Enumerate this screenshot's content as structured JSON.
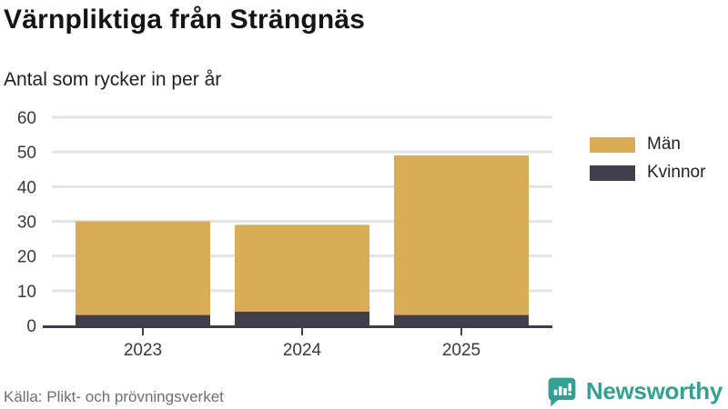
{
  "header": {
    "title": "Värnpliktiga från Strängnäs",
    "subtitle": "Antal som rycker in per år"
  },
  "chart_data": {
    "type": "bar",
    "stacked": true,
    "categories": [
      "2023",
      "2024",
      "2025"
    ],
    "series": [
      {
        "name": "Män",
        "color": "#d9ad58",
        "values": [
          27,
          25,
          46
        ]
      },
      {
        "name": "Kvinnor",
        "color": "#413f4d",
        "values": [
          3,
          4,
          3
        ]
      }
    ],
    "totals": [
      30,
      29,
      49
    ],
    "title": "Värnpliktiga från Strängnäs",
    "subtitle": "Antal som rycker in per år",
    "xlabel": "",
    "ylabel": "",
    "ylim": [
      0,
      60
    ],
    "yticks": [
      0,
      10,
      20,
      30,
      40,
      50,
      60
    ],
    "grid": true,
    "legend_position": "right"
  },
  "footer": {
    "source": "Källa: Plikt- och prövningsverket",
    "brand": "Newsworthy"
  },
  "icons": {
    "brand": "speech-bubble-bar-chart-icon"
  },
  "colors": {
    "male_bar": "#d9ad58",
    "female_bar": "#413f4d",
    "axis": "#3e3d4a",
    "grid": "#e4e4e4",
    "tick_label": "#3a3a3a",
    "source_text": "#6e6e78",
    "brand_teal": "#359f94"
  }
}
